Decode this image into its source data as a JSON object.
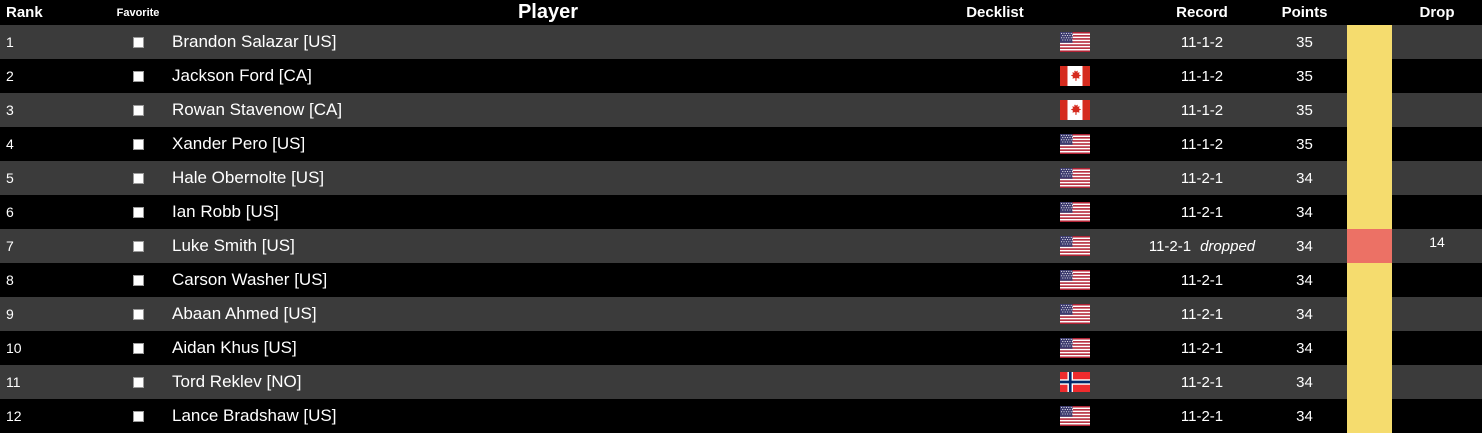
{
  "table": {
    "headers": {
      "rank": "Rank",
      "favorite": "Favorite",
      "player": "Player",
      "decklist": "Decklist",
      "record": "Record",
      "points": "Points",
      "drop": "Drop"
    },
    "colors": {
      "header_bg": "#000000",
      "row_odd": "#3b3b3b",
      "row_even": "#000000",
      "band_yellow": "#f5dc6e",
      "band_red": "#ec7165",
      "text": "#ffffff"
    },
    "rows": [
      {
        "rank": "1",
        "player": "Brandon Salazar [US]",
        "country": "US",
        "record": "11-1-2",
        "status": "",
        "points": "35",
        "drop": "",
        "band": "yellow"
      },
      {
        "rank": "2",
        "player": "Jackson Ford [CA]",
        "country": "CA",
        "record": "11-1-2",
        "status": "",
        "points": "35",
        "drop": "",
        "band": "yellow"
      },
      {
        "rank": "3",
        "player": "Rowan Stavenow [CA]",
        "country": "CA",
        "record": "11-1-2",
        "status": "",
        "points": "35",
        "drop": "",
        "band": "yellow"
      },
      {
        "rank": "4",
        "player": "Xander Pero [US]",
        "country": "US",
        "record": "11-1-2",
        "status": "",
        "points": "35",
        "drop": "",
        "band": "yellow"
      },
      {
        "rank": "5",
        "player": "Hale Obernolte [US]",
        "country": "US",
        "record": "11-2-1",
        "status": "",
        "points": "34",
        "drop": "",
        "band": "yellow"
      },
      {
        "rank": "6",
        "player": "Ian Robb [US]",
        "country": "US",
        "record": "11-2-1",
        "status": "",
        "points": "34",
        "drop": "",
        "band": "yellow"
      },
      {
        "rank": "7",
        "player": "Luke Smith [US]",
        "country": "US",
        "record": "11-2-1",
        "status": "dropped",
        "points": "34",
        "drop": "14",
        "band": "red"
      },
      {
        "rank": "8",
        "player": "Carson Washer [US]",
        "country": "US",
        "record": "11-2-1",
        "status": "",
        "points": "34",
        "drop": "",
        "band": "yellow"
      },
      {
        "rank": "9",
        "player": "Abaan Ahmed [US]",
        "country": "US",
        "record": "11-2-1",
        "status": "",
        "points": "34",
        "drop": "",
        "band": "yellow"
      },
      {
        "rank": "10",
        "player": "Aidan Khus [US]",
        "country": "US",
        "record": "11-2-1",
        "status": "",
        "points": "34",
        "drop": "",
        "band": "yellow"
      },
      {
        "rank": "11",
        "player": "Tord Reklev [NO]",
        "country": "NO",
        "record": "11-2-1",
        "status": "",
        "points": "34",
        "drop": "",
        "band": "yellow"
      },
      {
        "rank": "12",
        "player": "Lance Bradshaw [US]",
        "country": "US",
        "record": "11-2-1",
        "status": "",
        "points": "34",
        "drop": "",
        "band": "yellow"
      }
    ]
  }
}
